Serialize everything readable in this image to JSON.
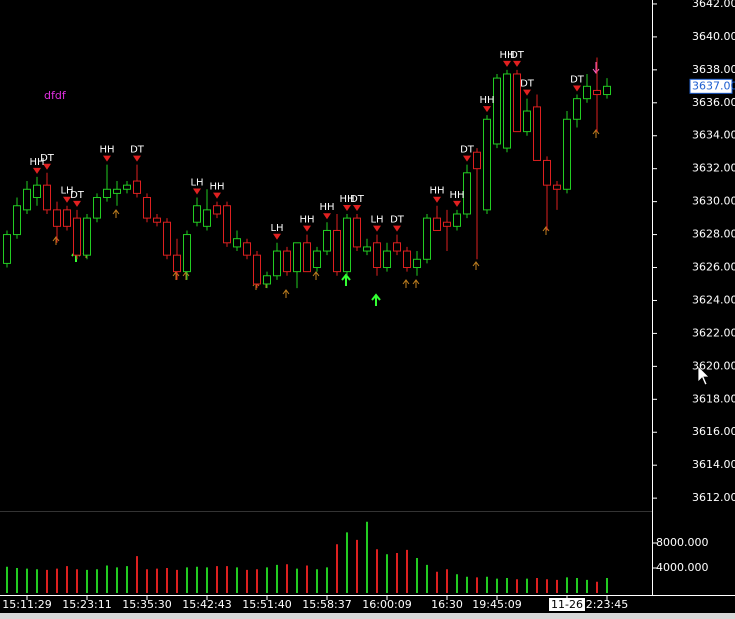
{
  "chart_data": {
    "type": "candlestick",
    "text_label": "dfdf",
    "up_color": "#22cc22",
    "down_color": "#dd2020",
    "categories": [
      null,
      null,
      "15:11:29",
      null,
      null,
      null,
      null,
      null,
      "15:23:11",
      null,
      null,
      null,
      null,
      null,
      "15:35:30",
      null,
      null,
      null,
      null,
      null,
      "15:42:43",
      null,
      null,
      null,
      null,
      null,
      "15:51:40",
      null,
      null,
      null,
      null,
      null,
      "15:58:37",
      null,
      null,
      null,
      null,
      null,
      "16:00:09",
      null,
      null,
      null,
      null,
      null,
      "16:30",
      null,
      null,
      null,
      null,
      "19:45:09",
      null,
      null,
      null,
      null,
      null,
      null,
      "11-26",
      null,
      null,
      null,
      "2:23:45"
    ],
    "open": [
      3626.25,
      3628,
      3629.5,
      3630.25,
      3631,
      3629.5,
      3629.5,
      3629,
      3626.75,
      3629,
      3630.25,
      3630.5,
      3630.75,
      3631.25,
      3630.25,
      3629,
      3628.75,
      3626.75,
      3625.75,
      3628.75,
      3628.5,
      3629.75,
      3629.75,
      3627.25,
      3627.5,
      3626.75,
      3625,
      3625.5,
      3627,
      3625.75,
      3627.5,
      3626,
      3627,
      3628.25,
      3625.75,
      3629,
      3627,
      3627.5,
      3626,
      3627.5,
      3627,
      3626,
      3626.5,
      3629,
      3628.75,
      3628.5,
      3629.25,
      3633,
      3629.5,
      3633.5,
      3633.25,
      3637.75,
      3634.25,
      3635.75,
      3632.5,
      3631,
      3630.75,
      3635,
      3636.25,
      3636.75,
      3636.5
    ],
    "high": [
      3628.25,
      3630.25,
      3631.25,
      3631.5,
      3631.75,
      3630,
      3629.75,
      3629.5,
      3629.25,
      3630.5,
      3632.25,
      3631.25,
      3631.25,
      3632.25,
      3630.5,
      3629.25,
      3629,
      3627.75,
      3628.25,
      3630.25,
      3630.75,
      3630,
      3630,
      3628.25,
      3627.75,
      3627,
      3625.75,
      3627.5,
      3627.25,
      3627.5,
      3628,
      3627.25,
      3628.75,
      3629.25,
      3629.25,
      3629.25,
      3627.75,
      3628,
      3627.5,
      3628,
      3627.25,
      3627,
      3629.25,
      3629.75,
      3629.5,
      3629.5,
      3632.25,
      3633.25,
      3635.25,
      3637.75,
      3638,
      3638,
      3636.25,
      3636.5,
      3632.75,
      3631.25,
      3635.5,
      3636.5,
      3637.75,
      3638.75,
      3637.5
    ],
    "low": [
      3626,
      3627.75,
      3629.25,
      3629.75,
      3629.25,
      3627.5,
      3628.25,
      3626.5,
      3626.5,
      3628.75,
      3630,
      3629.75,
      3630.5,
      3630.25,
      3628.75,
      3628.5,
      3626.5,
      3625.25,
      3625.25,
      3628.5,
      3628.25,
      3629,
      3627.25,
      3627,
      3626.5,
      3624.75,
      3624.75,
      3625.25,
      3625.5,
      3624.75,
      3625.75,
      3625.75,
      3626.75,
      3625.5,
      3625.5,
      3627,
      3626.75,
      3625.5,
      3625.75,
      3626.75,
      3625.75,
      3625.5,
      3626.25,
      3628.25,
      3627,
      3628.25,
      3629,
      3626.5,
      3629.25,
      3633.25,
      3633,
      3634.25,
      3634,
      3632.5,
      3628.25,
      3629.5,
      3630.5,
      3634.5,
      3636,
      3634.25,
      3636.25
    ],
    "close": [
      3628,
      3629.75,
      3630.75,
      3631,
      3629.5,
      3628.5,
      3628.5,
      3626.75,
      3629,
      3630.25,
      3630.75,
      3630.75,
      3631,
      3630.5,
      3629,
      3628.75,
      3626.75,
      3625.75,
      3628,
      3629.75,
      3629.5,
      3629.25,
      3627.5,
      3627.75,
      3626.75,
      3625,
      3625.5,
      3627,
      3625.75,
      3627.5,
      3625.75,
      3627,
      3628.25,
      3625.75,
      3629,
      3627.25,
      3627.25,
      3626,
      3627,
      3627,
      3626,
      3626.5,
      3629,
      3628.25,
      3628.5,
      3629.25,
      3631.75,
      3632,
      3635,
      3637.5,
      3637.75,
      3634.25,
      3635.5,
      3632.5,
      3631,
      3630.75,
      3635,
      3636.25,
      3637,
      3636.5,
      3637
    ],
    "volume": [
      4200,
      4000,
      3900,
      3800,
      3700,
      3900,
      4300,
      3800,
      3700,
      3800,
      4400,
      4100,
      4300,
      5900,
      3800,
      3900,
      4000,
      3700,
      4100,
      4200,
      4100,
      4300,
      4300,
      4100,
      3700,
      3800,
      4100,
      4500,
      4600,
      3900,
      4400,
      3800,
      4100,
      7800,
      9700,
      8500,
      11400,
      7000,
      6200,
      6400,
      6900,
      5600,
      4500,
      3400,
      3800,
      3000,
      2600,
      2500,
      2600,
      2300,
      2400,
      2200,
      2300,
      2400,
      2200,
      2100,
      2500,
      2400,
      2100,
      1800,
      2400
    ],
    "ylim": [
      3611.28,
      3642.24
    ],
    "yticks": [
      {
        "value": 3612,
        "label": "3612.00"
      },
      {
        "value": 3614,
        "label": "3614.00"
      },
      {
        "value": 3616,
        "label": "3616.00"
      },
      {
        "value": 3618,
        "label": "3618.00"
      },
      {
        "value": 3620,
        "label": "3620.00"
      },
      {
        "value": 3622,
        "label": "3622.00"
      },
      {
        "value": 3624,
        "label": "3624.00"
      },
      {
        "value": 3626,
        "label": "3626.00"
      },
      {
        "value": 3628,
        "label": "3628.00"
      },
      {
        "value": 3630,
        "label": "3630.00"
      },
      {
        "value": 3632,
        "label": "3632.00"
      },
      {
        "value": 3634,
        "label": "3634.00"
      },
      {
        "value": 3636,
        "label": "3636.00"
      },
      {
        "value": 3638,
        "label": "3638.00"
      },
      {
        "value": 3640,
        "label": "3640.00"
      },
      {
        "value": 3642,
        "label": "3642.00"
      }
    ],
    "y2lim": [
      0,
      12480
    ],
    "y2ticks": [
      {
        "value": 4000,
        "label": "4000.000"
      },
      {
        "value": 8000,
        "label": "8000.000"
      }
    ],
    "last_price": {
      "value": 3637,
      "label": "3637.00"
    },
    "annotations": [
      {
        "index": 3,
        "label": "HH"
      },
      {
        "index": 4,
        "label": "DT"
      },
      {
        "index": 6,
        "label": "LH"
      },
      {
        "index": 7,
        "label": "DT"
      },
      {
        "index": 10,
        "label": "HH"
      },
      {
        "index": 13,
        "label": "DT"
      },
      {
        "index": 19,
        "label": "LH"
      },
      {
        "index": 21,
        "label": "HH"
      },
      {
        "index": 27,
        "label": "LH"
      },
      {
        "index": 30,
        "label": "HH"
      },
      {
        "index": 32,
        "label": "HH"
      },
      {
        "index": 34,
        "label": "HH"
      },
      {
        "index": 35,
        "label": "DT"
      },
      {
        "index": 37,
        "label": "LH"
      },
      {
        "index": 39,
        "label": "DT"
      },
      {
        "index": 43,
        "label": "HH"
      },
      {
        "index": 45,
        "label": "HH"
      },
      {
        "index": 46,
        "label": "DT"
      },
      {
        "index": 48,
        "label": "HH"
      },
      {
        "index": 50,
        "label": "HH"
      },
      {
        "index": 51,
        "label": "DT"
      },
      {
        "index": 52,
        "label": "DT"
      },
      {
        "index": 57,
        "label": "DT"
      }
    ]
  }
}
